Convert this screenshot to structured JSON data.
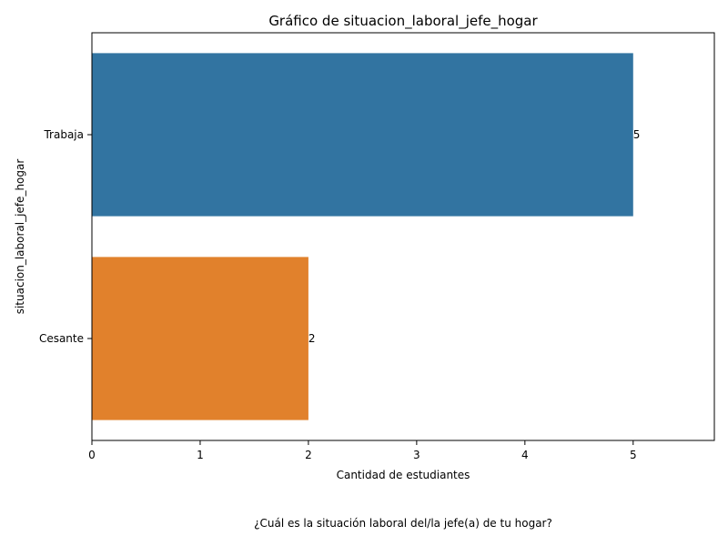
{
  "chart_data": {
    "type": "bar",
    "orientation": "horizontal",
    "title": "Gráfico de situacion_laboral_jefe_hogar",
    "xlabel": "Cantidad de estudiantes",
    "ylabel": "situacion_laboral_jefe_hogar",
    "caption": "¿Cuál es la situación laboral del/la jefe(a) de tu hogar?",
    "categories": [
      "Trabaja",
      "Cesante"
    ],
    "values": [
      5,
      2
    ],
    "data_labels": [
      "5",
      "2"
    ],
    "colors": [
      "#3274a1",
      "#e1812c"
    ],
    "xlim": [
      0,
      5.75
    ],
    "xticks": [
      0,
      1,
      2,
      3,
      4,
      5
    ],
    "xtick_labels": [
      "0",
      "1",
      "2",
      "3",
      "4",
      "5"
    ],
    "grid": false,
    "legend": "none"
  }
}
